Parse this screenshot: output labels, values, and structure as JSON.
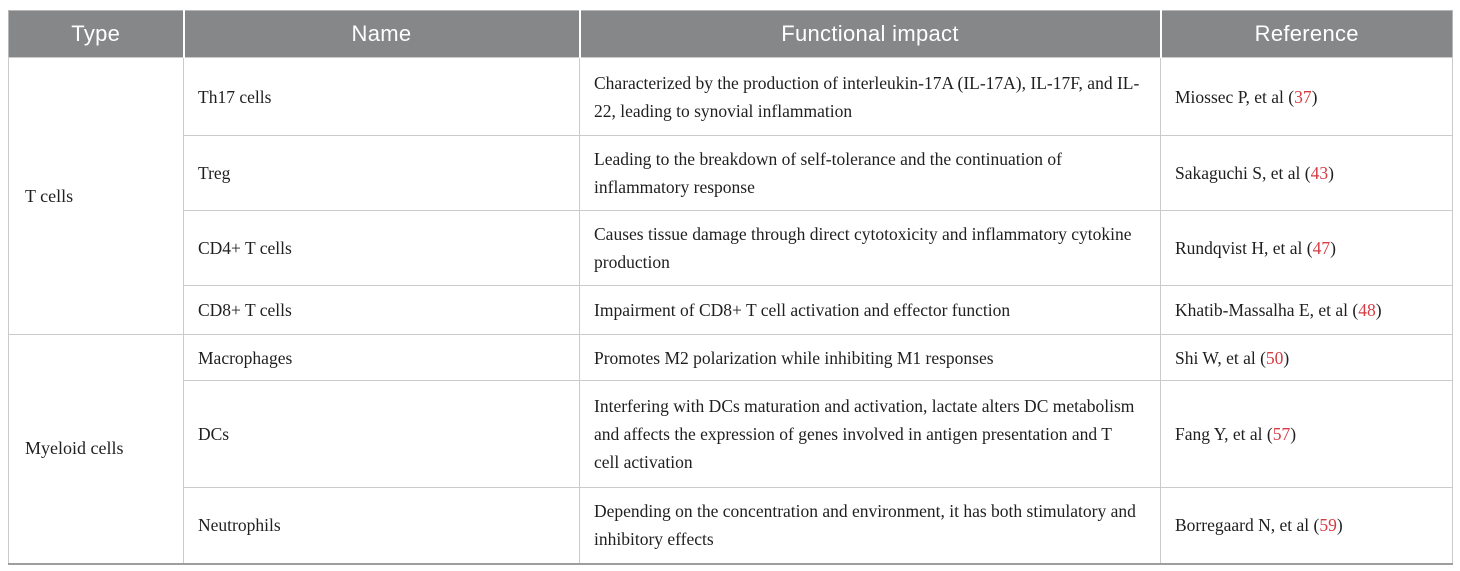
{
  "colors": {
    "header_bg": "#868789",
    "header_text": "#ffffff",
    "body_text": "#1f1f1f",
    "ref_number": "#d53c44",
    "grid_line": "#cbcbcb",
    "outer_border": "#b6b6b6",
    "bottom_border": "#9e9e9e"
  },
  "table": {
    "headers": [
      "Type",
      "Name",
      "Functional impact",
      "Reference"
    ],
    "groups": [
      {
        "type": "T cells",
        "rows": [
          {
            "name": "Th17 cells",
            "impact": "Characterized by the production of interleukin-17A (IL-17A), IL-17F, and IL-22, leading to synovial inflammation",
            "ref_prefix": "Miossec P, et al (",
            "ref_number": "37",
            "ref_suffix": ")"
          },
          {
            "name": "Treg",
            "impact": "Leading to the breakdown of self-tolerance and the continuation of inflammatory response",
            "ref_prefix": "Sakaguchi S, et al (",
            "ref_number": "43",
            "ref_suffix": ")"
          },
          {
            "name": "CD4+ T cells",
            "impact": "Causes tissue damage through direct cytotoxicity and inflammatory cytokine production",
            "ref_prefix": "Rundqvist H, et al (",
            "ref_number": "47",
            "ref_suffix": ")"
          },
          {
            "name": "CD8+ T cells",
            "impact": "Impairment of CD8+ T cell activation and effector function",
            "ref_prefix": "Khatib-Massalha E, et al (",
            "ref_number": "48",
            "ref_suffix": ")"
          }
        ]
      },
      {
        "type": "Myeloid cells",
        "rows": [
          {
            "name": "Macrophages",
            "impact": "Promotes M2 polarization while inhibiting M1 responses",
            "ref_prefix": "Shi W, et al (",
            "ref_number": "50",
            "ref_suffix": ")"
          },
          {
            "name": "DCs",
            "impact": "Interfering with DCs maturation and activation, lactate alters DC metabolism and affects the expression of genes involved in antigen presentation and T cell activation",
            "ref_prefix": "Fang Y, et al (",
            "ref_number": "57",
            "ref_suffix": ")"
          },
          {
            "name": "Neutrophils",
            "impact": "Depending on the concentration and environment, it has both stimulatory and inhibitory effects",
            "ref_prefix": "Borregaard N, et al (",
            "ref_number": "59",
            "ref_suffix": ")"
          }
        ]
      }
    ]
  }
}
